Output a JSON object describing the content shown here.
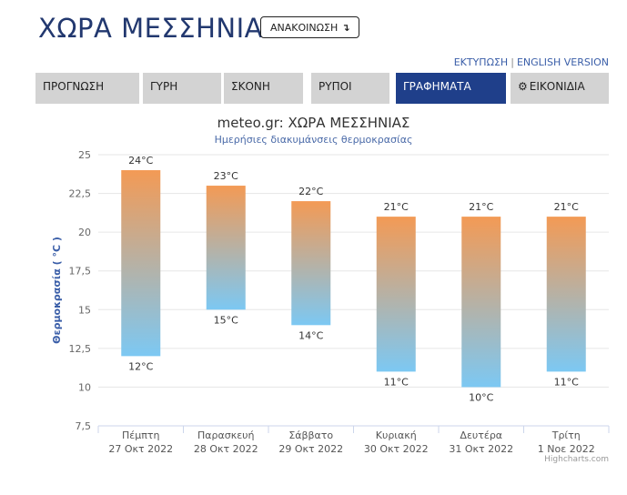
{
  "header": {
    "title": "ΧΩΡΑ ΜΕΣΣΗΝΙΑΣ",
    "announcements_label": "ΑΝΑΚΟΙΝΩΣΗ",
    "announcements_icon": "arrow-down-icon"
  },
  "links": {
    "print": "ΕΚΤΥΠΩΣΗ",
    "separator": "|",
    "english": "ENGLISH VERSION"
  },
  "tabs": [
    {
      "label": "ΠΡΟΓΝΩΣΗ",
      "active": false
    },
    {
      "label": "ΓΥΡΗ",
      "active": false
    },
    {
      "label": "ΣΚΟΝΗ",
      "active": false
    },
    {
      "label": "ΡΥΠΟΙ",
      "active": false
    },
    {
      "label": "ΓΡΑΦΗΜΑΤΑ",
      "active": true
    },
    {
      "label": "ΕΙΚΟΝΙΔΙΑ",
      "active": false,
      "icon": "gear-icon"
    }
  ],
  "colors": {
    "title": "#22386f",
    "active_tab": "#1f3f8a",
    "bar_top": "#f39a55",
    "bar_bottom": "#7cc8f3",
    "axis_title": "#3a5ea8"
  },
  "chart_data": {
    "type": "columnrange",
    "title": "meteo.gr: ΧΩΡΑ ΜΕΣΣΗΝΙΑΣ",
    "subtitle": "Ημερήσιες διακυμάνσεις θερμοκρασίας",
    "ylabel": "Θερμοκρασία ( °C )",
    "ylim": [
      7.5,
      25
    ],
    "yticks": [
      "7,5",
      "10",
      "12,5",
      "15",
      "17,5",
      "20",
      "22,5",
      "25"
    ],
    "grid": true,
    "categories": [
      [
        "Πέμπτη",
        "27 Οκτ 2022"
      ],
      [
        "Παρασκευή",
        "28 Οκτ 2022"
      ],
      [
        "Σάββατο",
        "29 Οκτ 2022"
      ],
      [
        "Κυριακή",
        "30 Οκτ 2022"
      ],
      [
        "Δευτέρα",
        "31 Οκτ 2022"
      ],
      [
        "Τρίτη",
        "1 Νοε 2022"
      ]
    ],
    "low": [
      12,
      15,
      14,
      11,
      10,
      11
    ],
    "high": [
      24,
      23,
      22,
      21,
      21,
      21
    ],
    "low_labels": [
      "12°C",
      "15°C",
      "14°C",
      "11°C",
      "10°C",
      "11°C"
    ],
    "high_labels": [
      "24°C",
      "23°C",
      "22°C",
      "21°C",
      "21°C",
      "21°C"
    ],
    "credits": "Highcharts.com"
  }
}
